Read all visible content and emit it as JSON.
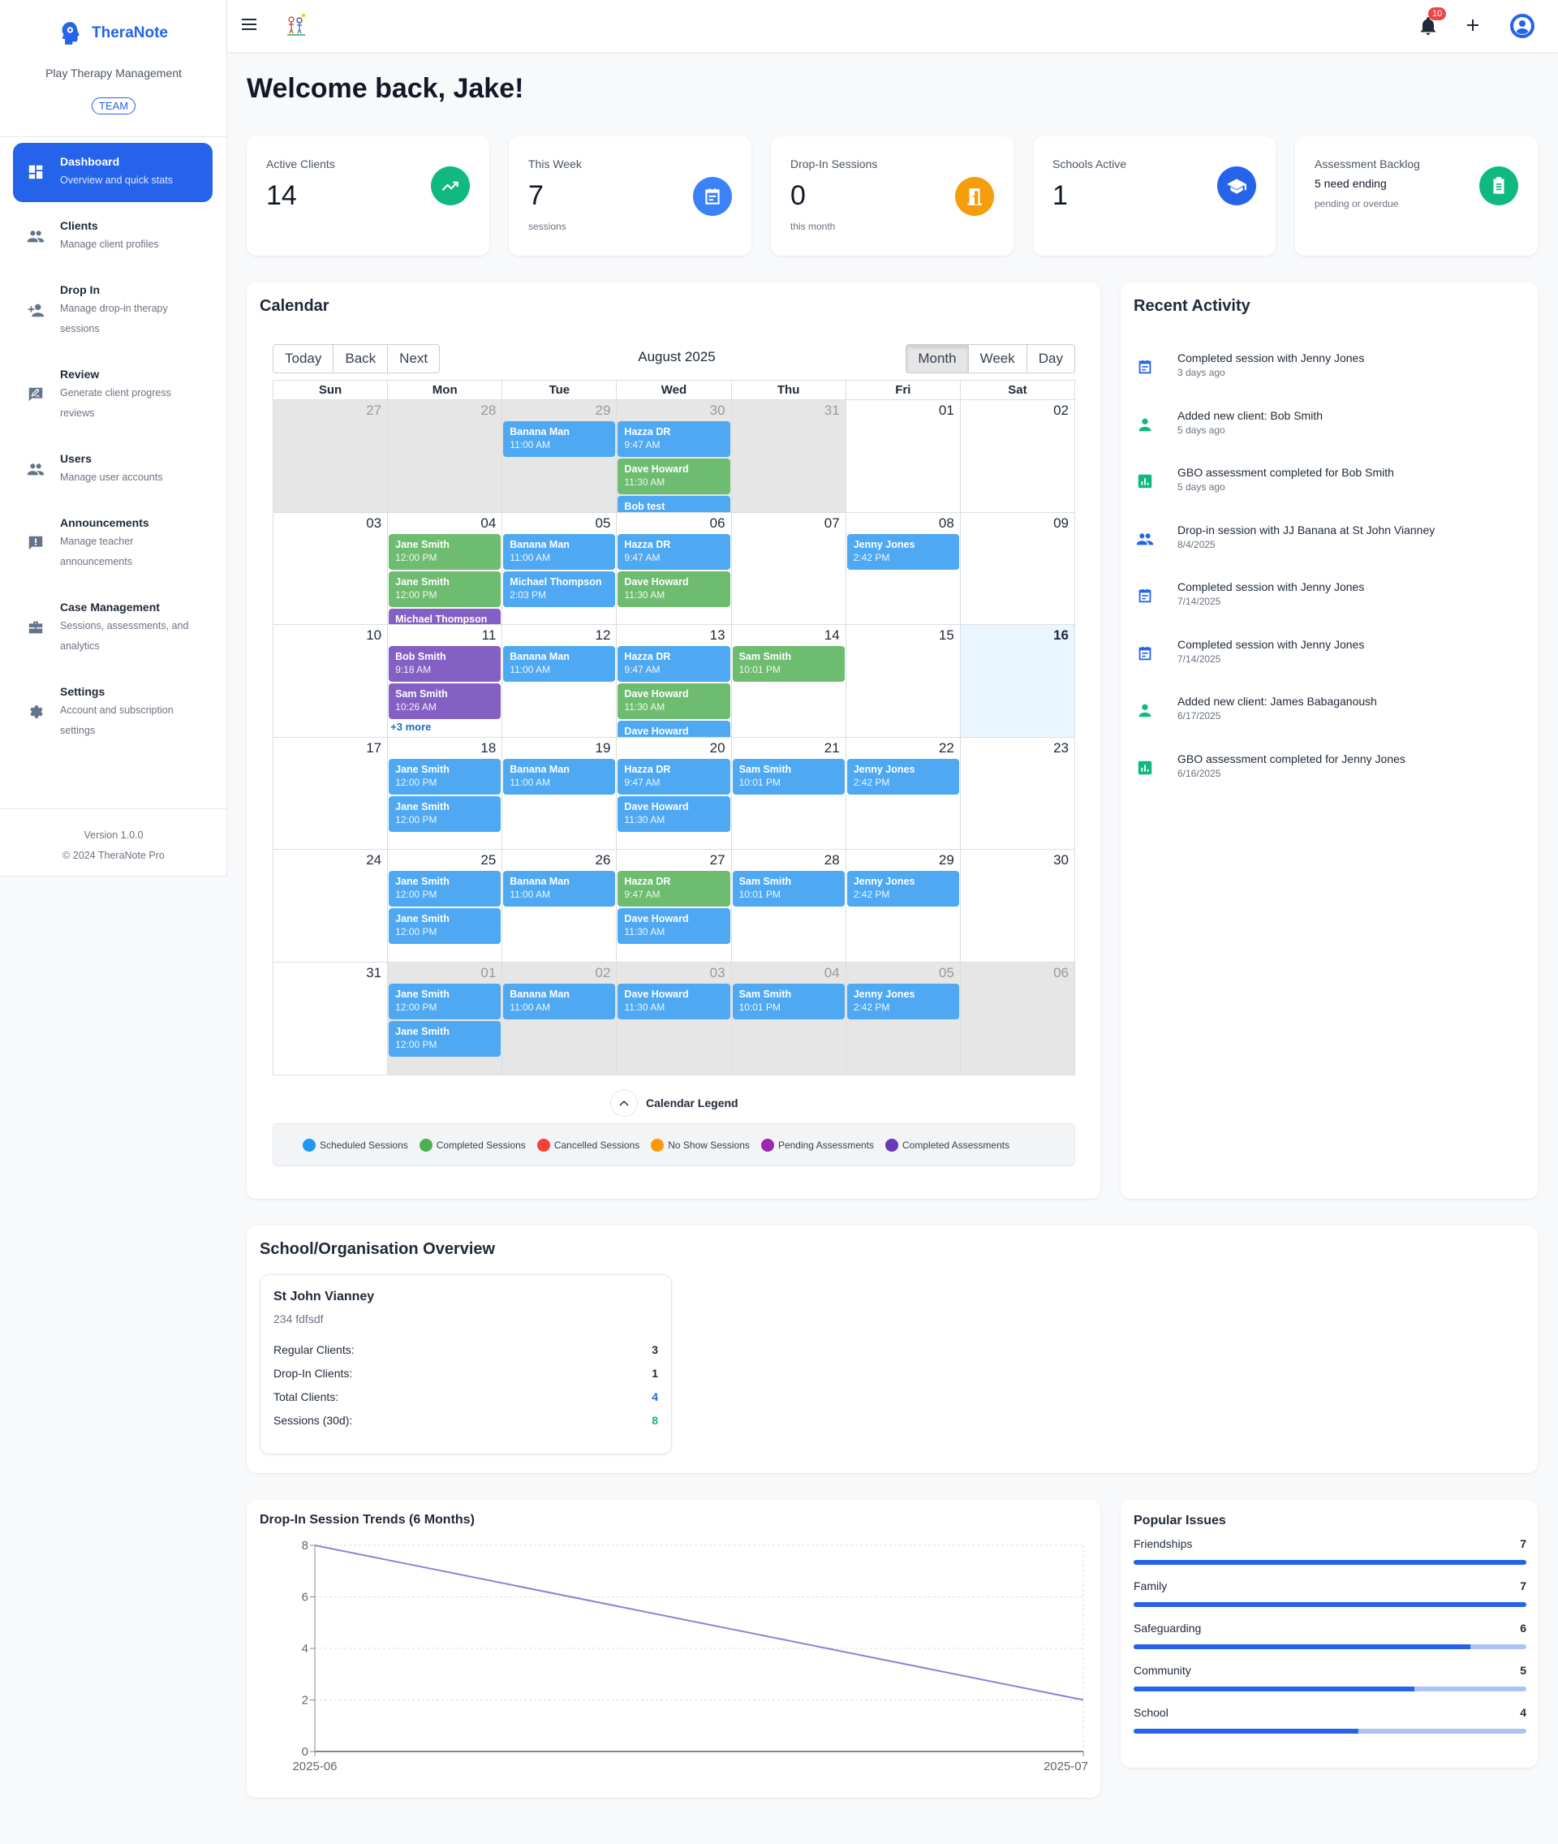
{
  "brand": {
    "name": "TheraNote",
    "tagline": "Play Therapy Management",
    "badge": "TEAM"
  },
  "sidebar": {
    "items": [
      {
        "title": "Dashboard",
        "desc": "Overview and quick stats",
        "icon": "dashboard-icon",
        "active": true
      },
      {
        "title": "Clients",
        "desc": "Manage client profiles",
        "icon": "people-icon"
      },
      {
        "title": "Drop In",
        "desc": "Manage drop-in therapy sessions",
        "icon": "person-add-icon"
      },
      {
        "title": "Review",
        "desc": "Generate client progress reviews",
        "icon": "rate-review-icon"
      },
      {
        "title": "Users",
        "desc": "Manage user accounts",
        "icon": "people-icon"
      },
      {
        "title": "Announcements",
        "desc": "Manage teacher announcements",
        "icon": "announcement-icon"
      },
      {
        "title": "Case Management",
        "desc": "Sessions, assessments, and analytics",
        "icon": "briefcase-icon"
      },
      {
        "title": "Settings",
        "desc": "Account and subscription settings",
        "icon": "gear-icon"
      }
    ],
    "version": "Version 1.0.0",
    "copyright": "© 2024 TheraNote Pro"
  },
  "header": {
    "notifications": "10"
  },
  "welcome": "Welcome back, Jake!",
  "stats": [
    {
      "label": "Active Clients",
      "value": "14",
      "sub": "",
      "color": "#10b981",
      "icon": "trending-up-icon"
    },
    {
      "label": "This Week",
      "value": "7",
      "sub": "sessions",
      "color": "#3b82f6",
      "icon": "calendar-icon"
    },
    {
      "label": "Drop-In Sessions",
      "value": "0",
      "sub": "this month",
      "color": "#f59e0b",
      "icon": "door-icon"
    },
    {
      "label": "Schools Active",
      "value": "1",
      "sub": "",
      "color": "#2563eb",
      "icon": "school-icon"
    },
    {
      "label": "Assessment Backlog",
      "extra": "5 need ending",
      "extra_sub": "pending or overdue",
      "color": "#10b981",
      "icon": "clipboard-icon"
    }
  ],
  "calendar": {
    "title": "Calendar",
    "month": "August 2025",
    "nav": [
      "Today",
      "Back",
      "Next"
    ],
    "views": [
      "Month",
      "Week",
      "Day"
    ],
    "active_view": "Month",
    "weekdays": [
      "Sun",
      "Mon",
      "Tue",
      "Wed",
      "Thu",
      "Fri",
      "Sat"
    ],
    "colors": {
      "scheduled": "#4ea9f2",
      "completed": "#6dbc6f",
      "pending": "#8560c4"
    },
    "weeks": [
      [
        {
          "n": "27",
          "off": true
        },
        {
          "n": "28",
          "off": true
        },
        {
          "n": "29",
          "off": true,
          "ev": [
            [
              "Banana Man",
              "11:00 AM",
              "scheduled"
            ]
          ]
        },
        {
          "n": "30",
          "off": true,
          "ev": [
            [
              "Hazza DR",
              "9:47 AM",
              "scheduled"
            ],
            [
              "Dave Howard",
              "11:30 AM",
              "completed"
            ],
            [
              "Bob test",
              "",
              "scheduled"
            ]
          ]
        },
        {
          "n": "31",
          "off": true
        },
        {
          "n": "01"
        },
        {
          "n": "02"
        }
      ],
      [
        {
          "n": "03"
        },
        {
          "n": "04",
          "ev": [
            [
              "Jane Smith",
              "12:00 PM",
              "completed"
            ],
            [
              "Jane Smith",
              "12:00 PM",
              "completed"
            ],
            [
              "Michael Thompson",
              "",
              "pending"
            ]
          ]
        },
        {
          "n": "05",
          "ev": [
            [
              "Banana Man",
              "11:00 AM",
              "scheduled"
            ],
            [
              "Michael Thompson",
              "2:03 PM",
              "scheduled"
            ]
          ]
        },
        {
          "n": "06",
          "ev": [
            [
              "Hazza DR",
              "9:47 AM",
              "scheduled"
            ],
            [
              "Dave Howard",
              "11:30 AM",
              "completed"
            ]
          ]
        },
        {
          "n": "07"
        },
        {
          "n": "08",
          "ev": [
            [
              "Jenny Jones",
              "2:42 PM",
              "scheduled"
            ]
          ]
        },
        {
          "n": "09"
        }
      ],
      [
        {
          "n": "10"
        },
        {
          "n": "11",
          "ev": [
            [
              "Bob Smith",
              "9:18 AM",
              "pending"
            ],
            [
              "Sam Smith",
              "10:26 AM",
              "pending"
            ]
          ],
          "more": "+3 more"
        },
        {
          "n": "12",
          "ev": [
            [
              "Banana Man",
              "11:00 AM",
              "scheduled"
            ]
          ]
        },
        {
          "n": "13",
          "ev": [
            [
              "Hazza DR",
              "9:47 AM",
              "scheduled"
            ],
            [
              "Dave Howard",
              "11:30 AM",
              "completed"
            ],
            [
              "Dave Howard",
              "",
              "scheduled"
            ]
          ]
        },
        {
          "n": "14",
          "ev": [
            [
              "Sam Smith",
              "10:01 PM",
              "completed"
            ]
          ]
        },
        {
          "n": "15"
        },
        {
          "n": "16",
          "today": true
        }
      ],
      [
        {
          "n": "17"
        },
        {
          "n": "18",
          "ev": [
            [
              "Jane Smith",
              "12:00 PM",
              "scheduled"
            ],
            [
              "Jane Smith",
              "12:00 PM",
              "scheduled"
            ]
          ]
        },
        {
          "n": "19",
          "ev": [
            [
              "Banana Man",
              "11:00 AM",
              "scheduled"
            ]
          ]
        },
        {
          "n": "20",
          "ev": [
            [
              "Hazza DR",
              "9:47 AM",
              "scheduled"
            ],
            [
              "Dave Howard",
              "11:30 AM",
              "scheduled"
            ]
          ]
        },
        {
          "n": "21",
          "ev": [
            [
              "Sam Smith",
              "10:01 PM",
              "scheduled"
            ]
          ]
        },
        {
          "n": "22",
          "ev": [
            [
              "Jenny Jones",
              "2:42 PM",
              "scheduled"
            ]
          ]
        },
        {
          "n": "23"
        }
      ],
      [
        {
          "n": "24"
        },
        {
          "n": "25",
          "ev": [
            [
              "Jane Smith",
              "12:00 PM",
              "scheduled"
            ],
            [
              "Jane Smith",
              "12:00 PM",
              "scheduled"
            ]
          ]
        },
        {
          "n": "26",
          "ev": [
            [
              "Banana Man",
              "11:00 AM",
              "scheduled"
            ]
          ]
        },
        {
          "n": "27",
          "ev": [
            [
              "Hazza DR",
              "9:47 AM",
              "completed"
            ],
            [
              "Dave Howard",
              "11:30 AM",
              "scheduled"
            ]
          ]
        },
        {
          "n": "28",
          "ev": [
            [
              "Sam Smith",
              "10:01 PM",
              "scheduled"
            ]
          ]
        },
        {
          "n": "29",
          "ev": [
            [
              "Jenny Jones",
              "2:42 PM",
              "scheduled"
            ]
          ]
        },
        {
          "n": "30"
        }
      ],
      [
        {
          "n": "31"
        },
        {
          "n": "01",
          "off": true,
          "ev": [
            [
              "Jane Smith",
              "12:00 PM",
              "scheduled"
            ],
            [
              "Jane Smith",
              "12:00 PM",
              "scheduled"
            ]
          ]
        },
        {
          "n": "02",
          "off": true,
          "ev": [
            [
              "Banana Man",
              "11:00 AM",
              "scheduled"
            ]
          ]
        },
        {
          "n": "03",
          "off": true,
          "ev": [
            [
              "Dave Howard",
              "11:30 AM",
              "scheduled"
            ]
          ]
        },
        {
          "n": "04",
          "off": true,
          "ev": [
            [
              "Sam Smith",
              "10:01 PM",
              "scheduled"
            ]
          ]
        },
        {
          "n": "05",
          "off": true,
          "ev": [
            [
              "Jenny Jones",
              "2:42 PM",
              "scheduled"
            ]
          ]
        },
        {
          "n": "06",
          "off": true
        }
      ]
    ],
    "legend_title": "Calendar Legend",
    "legend": [
      {
        "label": "Scheduled Sessions",
        "color": "#2196f3"
      },
      {
        "label": "Completed Sessions",
        "color": "#4caf50"
      },
      {
        "label": "Cancelled Sessions",
        "color": "#f44336"
      },
      {
        "label": "No Show Sessions",
        "color": "#ff9800"
      },
      {
        "label": "Pending Assessments",
        "color": "#9c27b0"
      },
      {
        "label": "Completed Assessments",
        "color": "#673ab7"
      }
    ]
  },
  "activity": {
    "title": "Recent Activity",
    "items": [
      {
        "text": "Completed session with Jenny Jones",
        "time": "3 days ago",
        "icon": "calendar-icon",
        "color": "#2563eb"
      },
      {
        "text": "Added new client: Bob Smith",
        "time": "5 days ago",
        "icon": "person-icon",
        "color": "#10b981"
      },
      {
        "text": "GBO assessment completed for Bob Smith",
        "time": "5 days ago",
        "icon": "bar-chart-icon",
        "color": "#10b981"
      },
      {
        "text": "Drop-in session with JJ Banana at St John Vianney",
        "time": "8/4/2025",
        "icon": "group-icon",
        "color": "#2563eb"
      },
      {
        "text": "Completed session with Jenny Jones",
        "time": "7/14/2025",
        "icon": "calendar-icon",
        "color": "#2563eb"
      },
      {
        "text": "Completed session with Jenny Jones",
        "time": "7/14/2025",
        "icon": "calendar-icon",
        "color": "#2563eb"
      },
      {
        "text": "Added new client: James Babaganoush",
        "time": "6/17/2025",
        "icon": "person-icon",
        "color": "#10b981"
      },
      {
        "text": "GBO assessment completed for Jenny Jones",
        "time": "6/16/2025",
        "icon": "bar-chart-icon",
        "color": "#10b981"
      }
    ]
  },
  "schools": {
    "title": "School/Organisation Overview",
    "items": [
      {
        "name": "St John Vianney",
        "address": "234 fdfsdf",
        "rows": [
          {
            "label": "Regular Clients:",
            "value": "3",
            "color": "#1f2937"
          },
          {
            "label": "Drop-In Clients:",
            "value": "1",
            "color": "#1f2937"
          },
          {
            "label": "Total Clients:",
            "value": "4",
            "color": "#2563eb"
          },
          {
            "label": "Sessions (30d):",
            "value": "8",
            "color": "#10b981"
          }
        ]
      }
    ]
  },
  "chart_data": {
    "type": "line",
    "title": "Drop-In Session Trends (6 Months)",
    "x": [
      "2025-06",
      "2025-07"
    ],
    "series": [
      {
        "name": "Drop-In Sessions",
        "values": [
          8,
          2
        ],
        "color": "#8884d8"
      }
    ],
    "yticks": [
      0,
      2,
      4,
      6,
      8
    ],
    "ylim": [
      0,
      8
    ],
    "grid": true,
    "xlabel": "",
    "ylabel": ""
  },
  "issues": {
    "title": "Popular Issues",
    "max": 7,
    "items": [
      {
        "label": "Friendships",
        "value": 7
      },
      {
        "label": "Family",
        "value": 7
      },
      {
        "label": "Safeguarding",
        "value": 6
      },
      {
        "label": "Community",
        "value": 5
      },
      {
        "label": "School",
        "value": 4
      }
    ]
  }
}
